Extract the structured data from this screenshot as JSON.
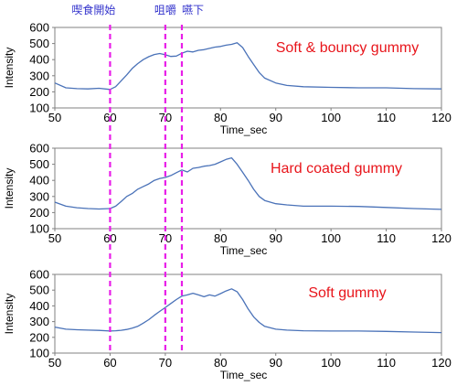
{
  "colors": {
    "trace": "#4a72b8",
    "event_line": "#e81ee8",
    "panel_title": "#e8151b",
    "phase_label": "#3333cc"
  },
  "phase_labels": [
    {
      "text": "喫食開始",
      "x": 60
    },
    {
      "text": "咀嚼",
      "x": 70
    },
    {
      "text": "嚥下",
      "x": 73
    }
  ],
  "chart_data": [
    {
      "type": "line",
      "title": "Soft & bouncy gummy",
      "xlabel": "Time_sec",
      "ylabel": "Intensity",
      "xlim": [
        50,
        120
      ],
      "ylim": [
        100,
        600
      ],
      "xticks": [
        50,
        60,
        70,
        80,
        90,
        100,
        110,
        120
      ],
      "yticks": [
        100,
        200,
        300,
        400,
        500,
        600
      ],
      "vlines": [
        60,
        70,
        73
      ],
      "series": [
        {
          "x": [
            50,
            52,
            54,
            56,
            58,
            60,
            61,
            62,
            63,
            64,
            65,
            66,
            67,
            68,
            69,
            70,
            71,
            72,
            73,
            74,
            75,
            76,
            77,
            78,
            79,
            80,
            81,
            82,
            83,
            84,
            85,
            86,
            87,
            88,
            90,
            92,
            95,
            100,
            105,
            110,
            115,
            120
          ],
          "y": [
            255,
            225,
            220,
            218,
            222,
            215,
            232,
            268,
            305,
            345,
            375,
            400,
            418,
            432,
            438,
            430,
            420,
            422,
            440,
            452,
            448,
            458,
            462,
            470,
            478,
            482,
            490,
            495,
            505,
            475,
            420,
            370,
            320,
            285,
            255,
            240,
            232,
            228,
            225,
            225,
            220,
            218
          ]
        }
      ]
    },
    {
      "type": "line",
      "title": "Hard coated gummy",
      "xlabel": "Time_sec",
      "ylabel": "Intensity",
      "xlim": [
        50,
        120
      ],
      "ylim": [
        100,
        600
      ],
      "xticks": [
        50,
        60,
        70,
        80,
        90,
        100,
        110,
        120
      ],
      "yticks": [
        100,
        200,
        300,
        400,
        500,
        600
      ],
      "vlines": [
        60,
        70,
        73
      ],
      "series": [
        {
          "x": [
            50,
            52,
            54,
            56,
            58,
            60,
            61,
            62,
            63,
            64,
            65,
            66,
            67,
            68,
            69,
            70,
            71,
            72,
            73,
            74,
            75,
            76,
            77,
            78,
            79,
            80,
            81,
            82,
            83,
            84,
            85,
            86,
            87,
            88,
            90,
            92,
            95,
            100,
            105,
            110,
            115,
            120
          ],
          "y": [
            265,
            240,
            230,
            225,
            222,
            225,
            240,
            268,
            300,
            318,
            345,
            362,
            378,
            400,
            412,
            418,
            430,
            448,
            465,
            452,
            475,
            480,
            488,
            492,
            500,
            515,
            530,
            540,
            500,
            450,
            400,
            345,
            300,
            275,
            255,
            248,
            240,
            240,
            238,
            232,
            225,
            220
          ]
        }
      ]
    },
    {
      "type": "line",
      "title": "Soft gummy",
      "xlabel": "Time_sec",
      "ylabel": "Intensity",
      "xlim": [
        50,
        120
      ],
      "ylim": [
        100,
        600
      ],
      "xticks": [
        50,
        60,
        70,
        80,
        90,
        100,
        110,
        120
      ],
      "yticks": [
        100,
        200,
        300,
        400,
        500,
        600
      ],
      "vlines": [
        60,
        70,
        73
      ],
      "series": [
        {
          "x": [
            50,
            52,
            54,
            56,
            58,
            60,
            61,
            62,
            63,
            64,
            65,
            66,
            67,
            68,
            69,
            70,
            71,
            72,
            73,
            74,
            75,
            76,
            77,
            78,
            79,
            80,
            81,
            82,
            83,
            84,
            85,
            86,
            87,
            88,
            90,
            92,
            95,
            100,
            105,
            110,
            115,
            120
          ],
          "y": [
            265,
            252,
            248,
            246,
            244,
            240,
            242,
            245,
            250,
            258,
            270,
            290,
            312,
            340,
            365,
            390,
            415,
            440,
            462,
            470,
            480,
            470,
            458,
            470,
            462,
            478,
            495,
            508,
            490,
            440,
            380,
            330,
            295,
            270,
            252,
            246,
            242,
            240,
            240,
            238,
            234,
            230
          ]
        }
      ]
    }
  ]
}
